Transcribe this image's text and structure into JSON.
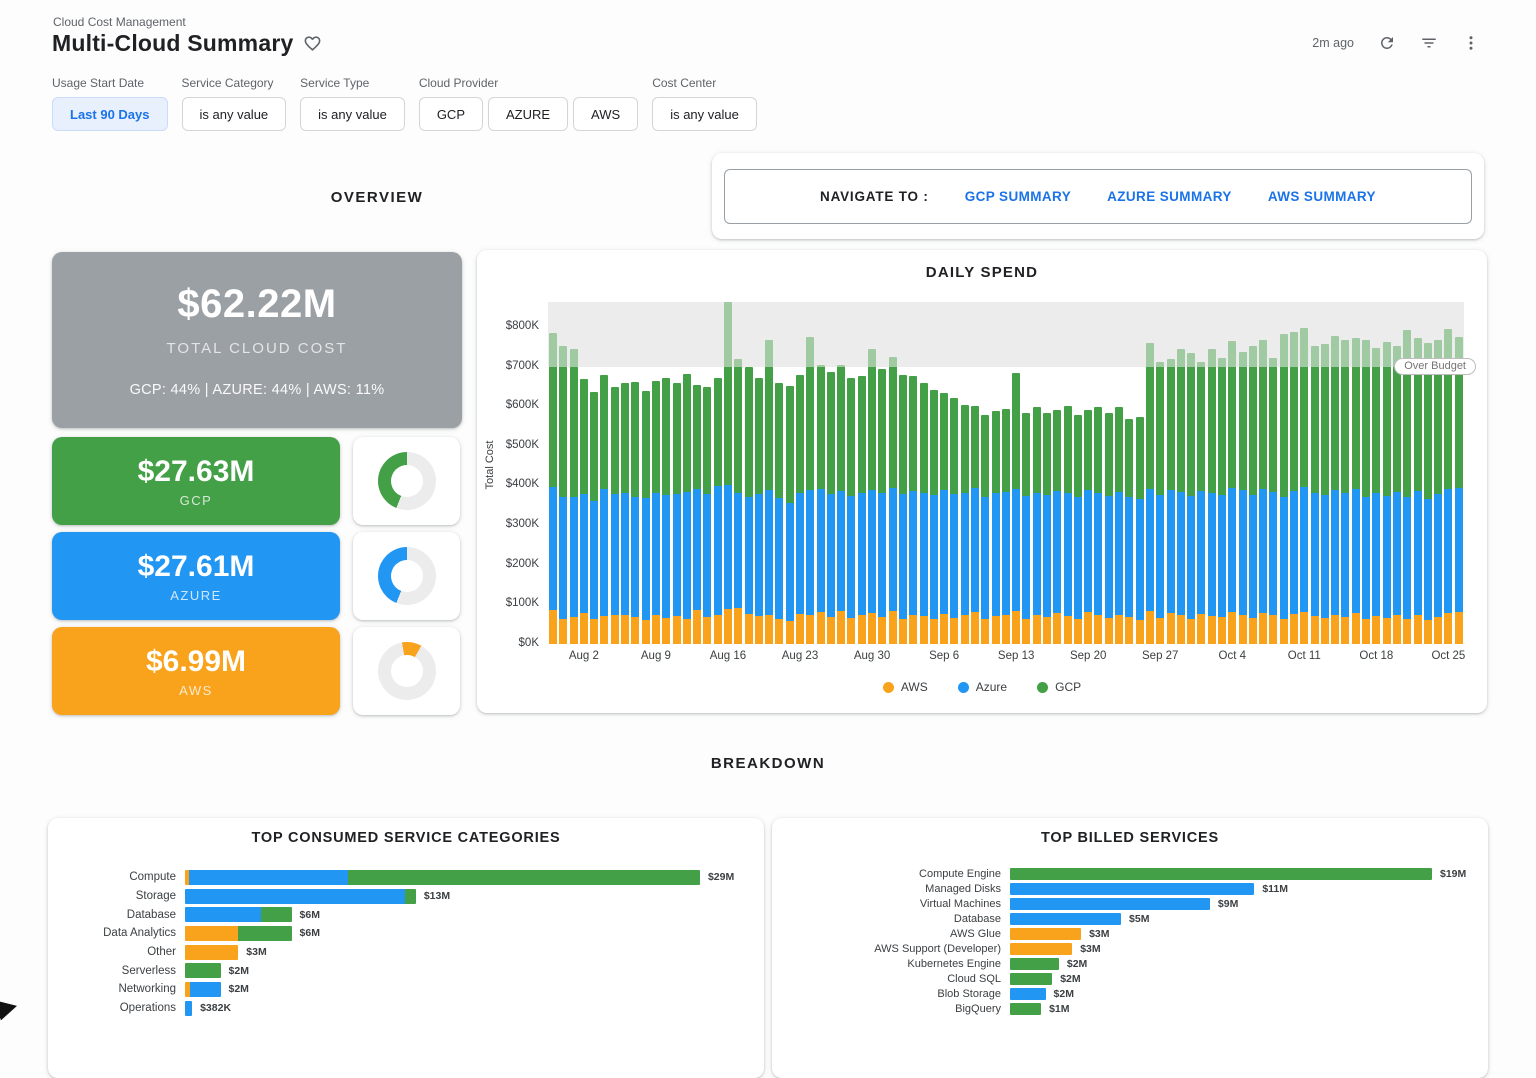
{
  "header": {
    "breadcrumb": "Cloud Cost Management",
    "title": "Multi-Cloud Summary",
    "last_refresh": "2m ago"
  },
  "sections": {
    "overview": "OVERVIEW",
    "breakdown": "BREAKDOWN"
  },
  "navigate": {
    "label": "NAVIGATE TO :",
    "links": [
      "GCP SUMMARY",
      "AZURE SUMMARY",
      "AWS SUMMARY"
    ]
  },
  "filters": [
    {
      "label": "Usage Start Date",
      "buttons": [
        {
          "text": "Last 90 Days",
          "active": true
        }
      ]
    },
    {
      "label": "Service Category",
      "buttons": [
        {
          "text": "is any value"
        }
      ]
    },
    {
      "label": "Service Type",
      "buttons": [
        {
          "text": "is any value"
        }
      ]
    },
    {
      "label": "Cloud Provider",
      "buttons": [
        {
          "text": "GCP"
        },
        {
          "text": "AZURE"
        },
        {
          "text": "AWS"
        }
      ]
    },
    {
      "label": "Cost Center",
      "buttons": [
        {
          "text": "is any value"
        }
      ]
    }
  ],
  "colors": {
    "gcp": "#43a047",
    "azure": "#2196f3",
    "aws": "#f9a21b",
    "link": "#1a73e8",
    "gray_tile": "#9ba0a5",
    "band": "#ececec"
  },
  "kpis": {
    "total": {
      "value": "$62.22M",
      "label": "TOTAL CLOUD COST",
      "sub": "GCP: 44% | AZURE: 44% | AWS: 11%"
    },
    "providers": [
      {
        "name": "GCP",
        "value": "$27.63M",
        "pct": 44,
        "color_key": "gcp"
      },
      {
        "name": "AZURE",
        "value": "$27.61M",
        "pct": 44,
        "color_key": "azure"
      },
      {
        "name": "AWS",
        "value": "$6.99M",
        "pct": 11,
        "color_key": "aws"
      }
    ]
  },
  "chart_data": [
    {
      "type": "bar",
      "stacked": true,
      "title": "DAILY SPEND",
      "ylabel": "Total Cost",
      "unit": "USD thousands per day",
      "ylim": [
        0,
        863
      ],
      "grid": false,
      "legend": "bottom",
      "budget_band_start_k": 700,
      "annotation": "Over Budget",
      "y_ticks": [
        "$0K",
        "$100K",
        "$200K",
        "$300K",
        "$400K",
        "$500K",
        "$600K",
        "$700K",
        "$800K"
      ],
      "x_tick_labels": [
        "Aug 2",
        "Aug 9",
        "Aug 16",
        "Aug 23",
        "Aug 30",
        "Sep 6",
        "Sep 13",
        "Sep 20",
        "Sep 27",
        "Oct 4",
        "Oct 11",
        "Oct 18",
        "Oct 25"
      ],
      "x_tick_indices": [
        3,
        10,
        17,
        24,
        31,
        38,
        45,
        52,
        59,
        66,
        73,
        80,
        87
      ],
      "series": [
        {
          "name": "AWS",
          "color_key": "aws"
        },
        {
          "name": "Azure",
          "color_key": "azure"
        },
        {
          "name": "GCP",
          "color_key": "gcp"
        }
      ],
      "aws_k": [
        86,
        62,
        68,
        78,
        64,
        70,
        74,
        72,
        68,
        60,
        72,
        66,
        70,
        64,
        86,
        68,
        74,
        88,
        92,
        76,
        70,
        72,
        62,
        58,
        76,
        72,
        80,
        68,
        84,
        66,
        72,
        78,
        68,
        84,
        62,
        74,
        70,
        64,
        76,
        66,
        72,
        80,
        62,
        70,
        74,
        84,
        64,
        72,
        68,
        78,
        70,
        62,
        80,
        72,
        66,
        74,
        68,
        60,
        84,
        66,
        78,
        72,
        64,
        76,
        70,
        68,
        82,
        74,
        66,
        78,
        72,
        64,
        76,
        80,
        70,
        66,
        74,
        68,
        78,
        62,
        70,
        66,
        72,
        64,
        74,
        60,
        68,
        78,
        80
      ],
      "azure_top_k": [
        395,
        370,
        372,
        378,
        360,
        390,
        378,
        382,
        372,
        368,
        380,
        376,
        378,
        384,
        390,
        378,
        398,
        402,
        380,
        372,
        378,
        388,
        368,
        356,
        382,
        388,
        392,
        378,
        386,
        374,
        380,
        388,
        382,
        394,
        378,
        386,
        382,
        376,
        388,
        378,
        382,
        394,
        372,
        380,
        384,
        392,
        374,
        382,
        376,
        386,
        380,
        370,
        388,
        382,
        374,
        384,
        372,
        366,
        392,
        376,
        388,
        384,
        374,
        386,
        380,
        376,
        394,
        388,
        376,
        390,
        384,
        372,
        386,
        396,
        382,
        376,
        388,
        380,
        390,
        372,
        380,
        374,
        384,
        370,
        386,
        366,
        378,
        392,
        394
      ],
      "total_k": [
        785,
        752,
        745,
        668,
        635,
        678,
        648,
        658,
        660,
        638,
        663,
        670,
        658,
        681,
        654,
        648,
        672,
        862,
        718,
        698,
        672,
        766,
        658,
        652,
        680,
        774,
        703,
        686,
        704,
        672,
        676,
        745,
        694,
        724,
        680,
        676,
        658,
        640,
        634,
        620,
        604,
        600,
        578,
        588,
        594,
        685,
        584,
        598,
        584,
        590,
        600,
        578,
        590,
        598,
        584,
        598,
        568,
        574,
        760,
        712,
        718,
        744,
        734,
        712,
        745,
        722,
        764,
        738,
        752,
        768,
        722,
        782,
        788,
        798,
        752,
        758,
        778,
        768,
        772,
        768,
        748,
        762,
        752,
        792,
        772,
        760,
        768,
        795,
        775
      ]
    },
    {
      "type": "bar",
      "orientation": "horizontal",
      "stacked": true,
      "title": "TOP CONSUMED SERVICE CATEGORIES",
      "unit": "USD millions",
      "max_m": 29,
      "rows": [
        {
          "label": "Compute",
          "value_label": "$29M",
          "segments": [
            {
              "provider": "aws",
              "m": 0.2
            },
            {
              "provider": "azure",
              "m": 9.0
            },
            {
              "provider": "gcp",
              "m": 19.8
            }
          ]
        },
        {
          "label": "Storage",
          "value_label": "$13M",
          "segments": [
            {
              "provider": "azure",
              "m": 12.4
            },
            {
              "provider": "gcp",
              "m": 0.6
            }
          ]
        },
        {
          "label": "Database",
          "value_label": "$6M",
          "segments": [
            {
              "provider": "azure",
              "m": 4.3
            },
            {
              "provider": "gcp",
              "m": 1.7
            }
          ]
        },
        {
          "label": "Data Analytics",
          "value_label": "$6M",
          "segments": [
            {
              "provider": "aws",
              "m": 3.0
            },
            {
              "provider": "gcp",
              "m": 3.0
            }
          ]
        },
        {
          "label": "Other",
          "value_label": "$3M",
          "segments": [
            {
              "provider": "aws",
              "m": 3.0
            }
          ]
        },
        {
          "label": "Serverless",
          "value_label": "$2M",
          "segments": [
            {
              "provider": "gcp",
              "m": 2.0
            }
          ]
        },
        {
          "label": "Networking",
          "value_label": "$2M",
          "segments": [
            {
              "provider": "aws",
              "m": 0.3
            },
            {
              "provider": "azure",
              "m": 1.7
            }
          ]
        },
        {
          "label": "Operations",
          "value_label": "$382K",
          "segments": [
            {
              "provider": "azure",
              "m": 0.4
            }
          ]
        }
      ]
    },
    {
      "type": "bar",
      "orientation": "horizontal",
      "stacked": false,
      "title": "TOP BILLED SERVICES",
      "unit": "USD millions",
      "max_m": 19,
      "rows": [
        {
          "label": "Compute Engine",
          "value_label": "$19M",
          "segments": [
            {
              "provider": "gcp",
              "m": 19.0
            }
          ]
        },
        {
          "label": "Managed Disks",
          "value_label": "$11M",
          "segments": [
            {
              "provider": "azure",
              "m": 11.0
            }
          ]
        },
        {
          "label": "Virtual Machines",
          "value_label": "$9M",
          "segments": [
            {
              "provider": "azure",
              "m": 9.0
            }
          ]
        },
        {
          "label": "Database",
          "value_label": "$5M",
          "segments": [
            {
              "provider": "azure",
              "m": 5.0
            }
          ]
        },
        {
          "label": "AWS Glue",
          "value_label": "$3M",
          "segments": [
            {
              "provider": "aws",
              "m": 3.2
            }
          ]
        },
        {
          "label": "AWS Support (Developer)",
          "value_label": "$3M",
          "segments": [
            {
              "provider": "aws",
              "m": 2.8
            }
          ]
        },
        {
          "label": "Kubernetes Engine",
          "value_label": "$2M",
          "segments": [
            {
              "provider": "gcp",
              "m": 2.2
            }
          ]
        },
        {
          "label": "Cloud SQL",
          "value_label": "$2M",
          "segments": [
            {
              "provider": "gcp",
              "m": 1.9
            }
          ]
        },
        {
          "label": "Blob Storage",
          "value_label": "$2M",
          "segments": [
            {
              "provider": "azure",
              "m": 1.6
            }
          ]
        },
        {
          "label": "BigQuery",
          "value_label": "$1M",
          "segments": [
            {
              "provider": "gcp",
              "m": 1.4
            }
          ]
        }
      ]
    }
  ]
}
